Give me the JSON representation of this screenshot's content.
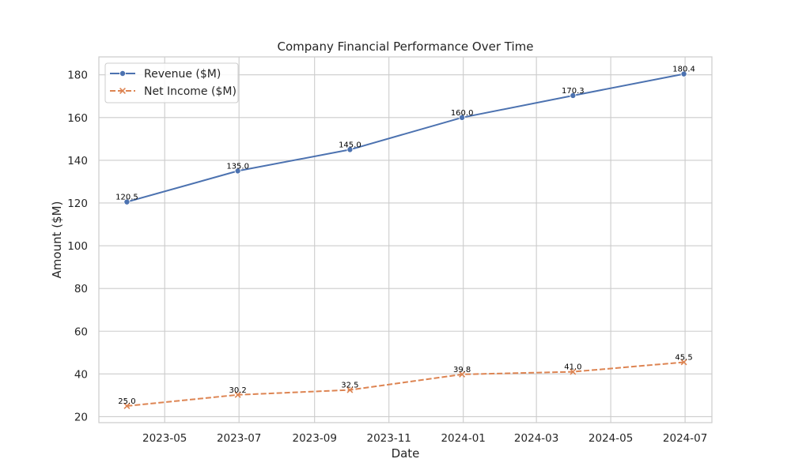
{
  "chart_data": {
    "type": "line",
    "title": "Company Financial Performance Over Time",
    "xlabel": "Date",
    "ylabel": "Amount ($M)",
    "x": [
      "2023-03-31",
      "2023-06-30",
      "2023-09-30",
      "2023-12-31",
      "2024-03-31",
      "2024-06-30"
    ],
    "xlim": [
      "2023-03-08",
      "2024-07-23"
    ],
    "ylim": [
      17.2,
      188.4
    ],
    "x_ticks": [
      "2023-05",
      "2023-07",
      "2023-09",
      "2023-11",
      "2024-01",
      "2024-03",
      "2024-05",
      "2024-07"
    ],
    "y_ticks": [
      20,
      40,
      60,
      80,
      100,
      120,
      140,
      160,
      180
    ],
    "grid": true,
    "legend_position": "top-left",
    "series": [
      {
        "name": "Revenue ($M)",
        "values": [
          120.5,
          135.0,
          145.0,
          160.0,
          170.3,
          180.4
        ],
        "labels": [
          "120.5",
          "135.0",
          "145.0",
          "160.0",
          "170.3",
          "180.4"
        ],
        "color": "#4c72b0",
        "marker": "circle",
        "line_style": "solid"
      },
      {
        "name": "Net Income ($M)",
        "values": [
          25.0,
          30.2,
          32.5,
          39.8,
          41.0,
          45.5
        ],
        "labels": [
          "25.0",
          "30.2",
          "32.5",
          "39.8",
          "41.0",
          "45.5"
        ],
        "color": "#dd8452",
        "marker": "x",
        "line_style": "dashed"
      }
    ]
  }
}
